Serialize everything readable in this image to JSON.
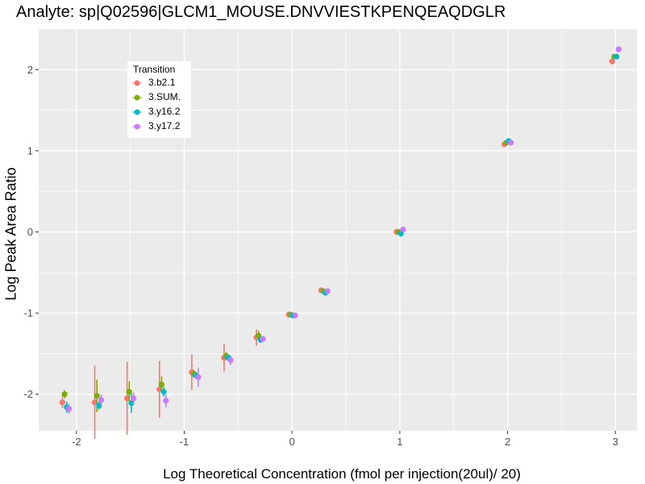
{
  "chart_data": {
    "type": "scatter",
    "title": "Analyte: sp|Q02596|GLCM1_MOUSE.DNVVIESTKPENQEAQDGLR",
    "xlabel": "Log Theoretical Concentration (fmol per injection(20ul)/ 20)",
    "ylabel": "Log Peak Area Ratio",
    "xlim": [
      -2.35,
      3.2
    ],
    "ylim": [
      -2.45,
      2.5
    ],
    "x_ticks": [
      -2,
      -1,
      0,
      1,
      2,
      3
    ],
    "x_tick_labels": [
      "-2",
      "-1",
      "0",
      "1",
      "2",
      "3"
    ],
    "y_ticks": [
      -2,
      -1,
      0,
      1,
      2
    ],
    "y_tick_labels": [
      "-2",
      "-1",
      "0",
      "1",
      "2"
    ],
    "x_minor_ticks": [
      -1.5,
      -0.5,
      0.5,
      1.5,
      2.5
    ],
    "y_minor_ticks": [
      -1.5,
      -0.5,
      0.5,
      1.5
    ],
    "background": "#EBEBEB",
    "legend": {
      "title": "Transition",
      "placement": "top-left"
    },
    "series": [
      {
        "name": "3.b2.1",
        "color": "#F8766D",
        "offset": -0.03,
        "x": [
          -2.1,
          -1.8,
          -1.5,
          -1.2,
          -0.9,
          -0.6,
          -0.3,
          0,
          0.3,
          1,
          2,
          3
        ],
        "y": [
          -2.1,
          -2.1,
          -2.05,
          -1.94,
          -1.73,
          -1.55,
          -1.3,
          -1.02,
          -0.72,
          0.0,
          1.08,
          2.1
        ],
        "err": [
          0.07,
          0.45,
          0.45,
          0.35,
          0.22,
          0.17,
          0.1,
          0,
          0,
          0,
          0,
          0
        ]
      },
      {
        "name": "3.SUM.",
        "color": "#7CAE00",
        "offset": -0.01,
        "x": [
          -2.1,
          -1.8,
          -1.5,
          -1.2,
          -0.9,
          -0.6,
          -0.3,
          0,
          0.3,
          1,
          2,
          3
        ],
        "y": [
          -2.0,
          -2.02,
          -1.97,
          -1.88,
          -1.75,
          -1.53,
          -1.28,
          -1.02,
          -0.73,
          0.0,
          1.1,
          2.16
        ],
        "err": [
          0.05,
          0.2,
          0.13,
          0.1,
          0.05,
          0.05,
          0.06,
          0,
          0,
          0,
          0,
          0
        ]
      },
      {
        "name": "3.y16.2",
        "color": "#00BFC4",
        "offset": 0.01,
        "x": [
          -2.1,
          -1.8,
          -1.5,
          -1.2,
          -0.9,
          -0.6,
          -0.3,
          0,
          0.3,
          1,
          2,
          3
        ],
        "y": [
          -2.16,
          -2.14,
          -2.11,
          -1.97,
          -1.77,
          -1.55,
          -1.33,
          -1.03,
          -0.75,
          -0.02,
          1.12,
          2.16
        ],
        "err": [
          0.07,
          0.05,
          0.12,
          0.06,
          0.04,
          0.03,
          0.02,
          0,
          0,
          0,
          0,
          0
        ]
      },
      {
        "name": "3.y17.2",
        "color": "#C77CFF",
        "offset": 0.03,
        "x": [
          -2.1,
          -1.8,
          -1.5,
          -1.2,
          -0.9,
          -0.6,
          -0.3,
          0,
          0.3,
          1,
          2,
          3
        ],
        "y": [
          -2.18,
          -2.07,
          -2.05,
          -2.08,
          -1.79,
          -1.58,
          -1.32,
          -1.03,
          -0.73,
          0.03,
          1.1,
          2.25
        ],
        "err": [
          0.06,
          0.07,
          0.07,
          0.08,
          0.12,
          0.06,
          0.03,
          0,
          0,
          0,
          0,
          0
        ]
      }
    ]
  }
}
